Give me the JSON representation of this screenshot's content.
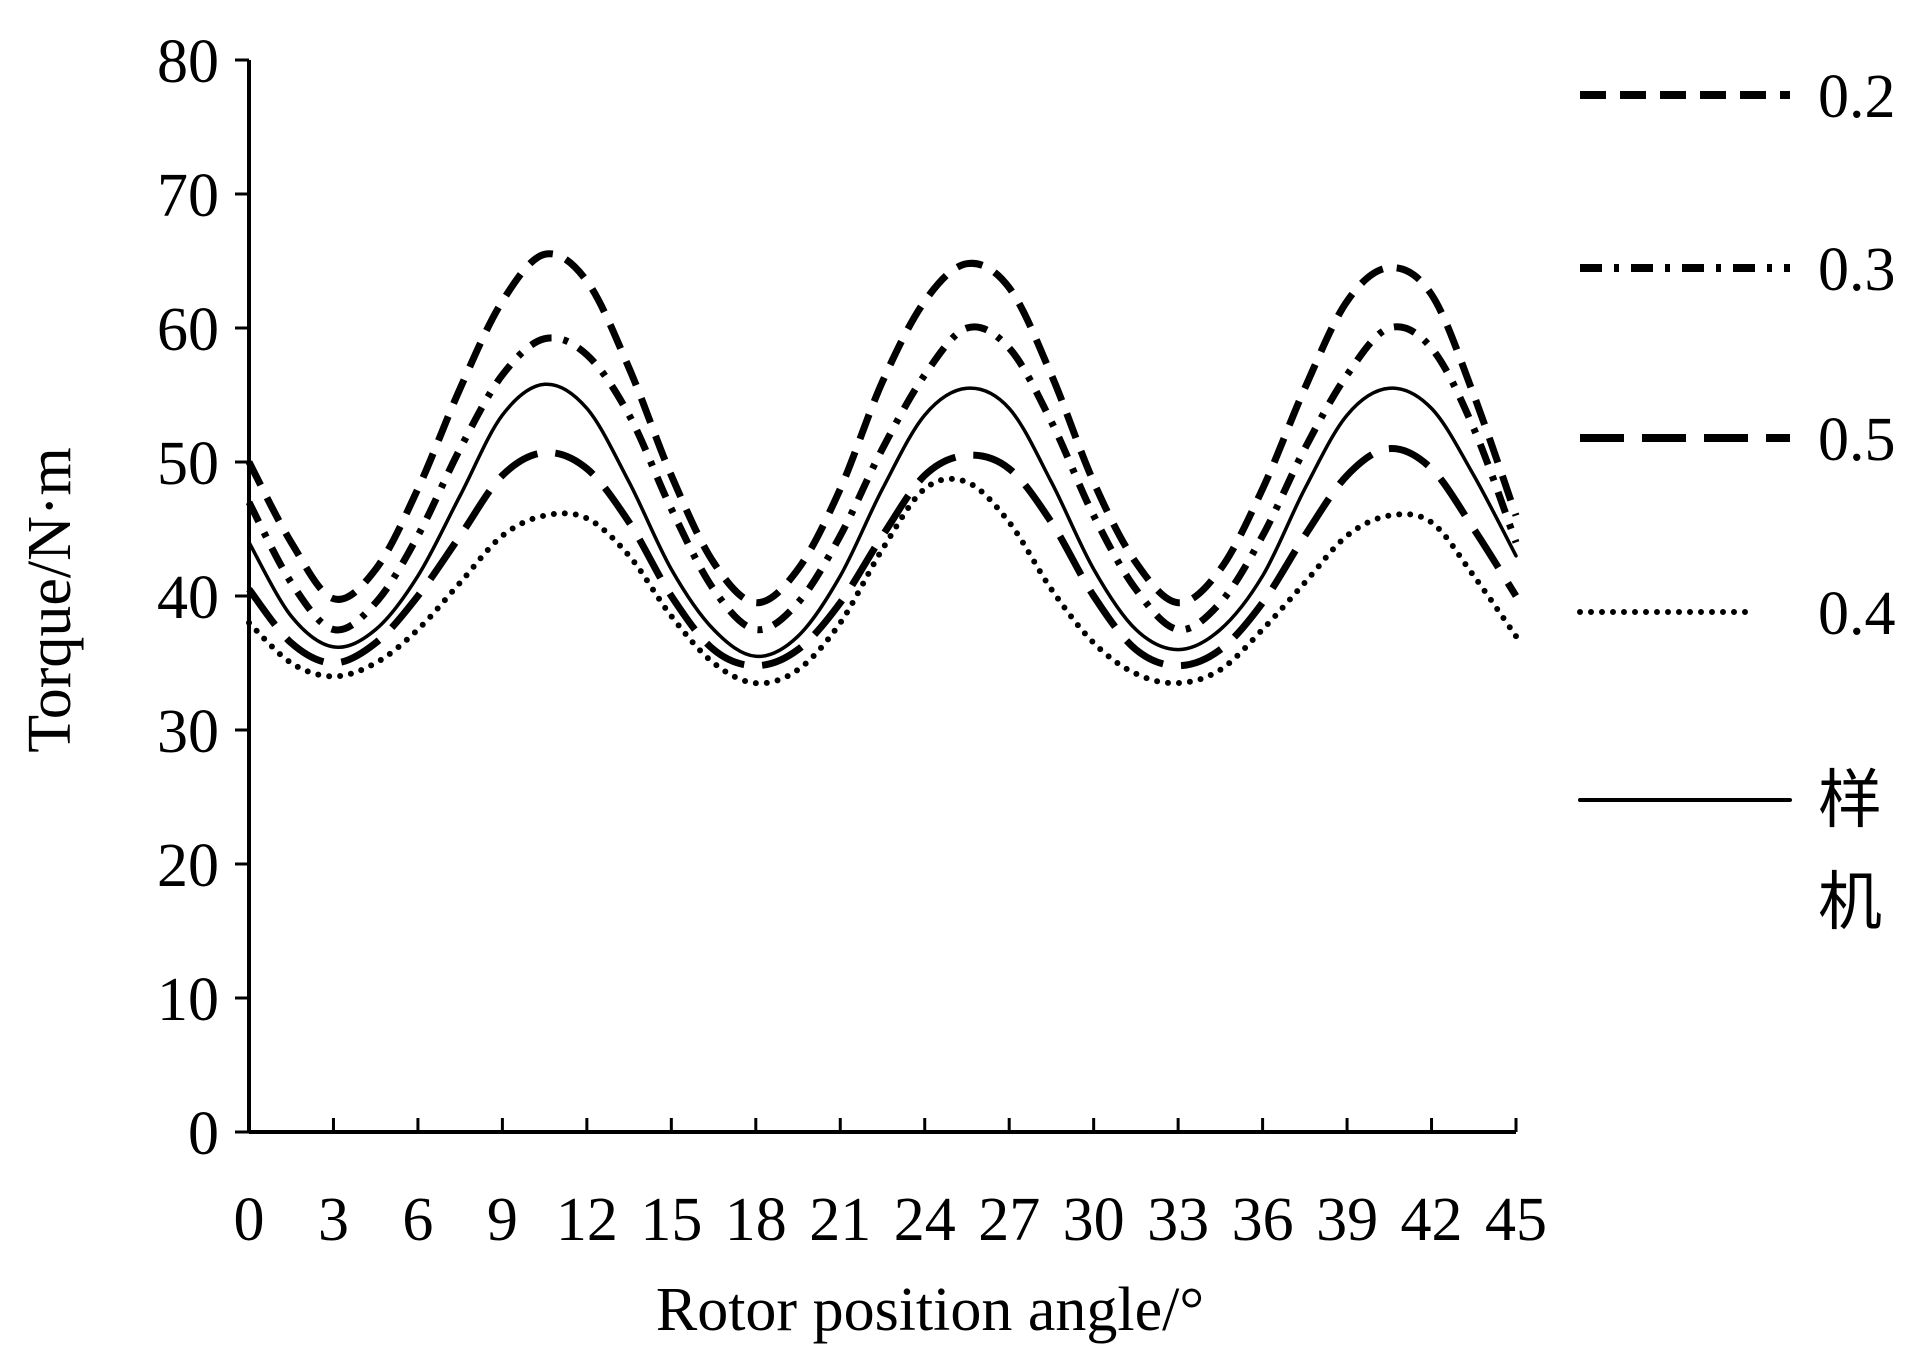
{
  "chart_data": {
    "type": "line",
    "xlabel": "Rotor position angle/°",
    "ylabel": "Torque/N·m",
    "xlim": [
      0,
      45
    ],
    "ylim": [
      0,
      80
    ],
    "xticks": [
      0,
      3,
      6,
      9,
      12,
      15,
      18,
      21,
      24,
      27,
      30,
      33,
      36,
      39,
      42,
      45
    ],
    "yticks": [
      0,
      10,
      20,
      30,
      40,
      50,
      60,
      70,
      80
    ],
    "grid": false,
    "legend_position": "right",
    "series": [
      {
        "name": "0.2",
        "style": "dash",
        "x": [
          0,
          1.5,
          3,
          4.5,
          6,
          7.5,
          9,
          10.5,
          12,
          13.5,
          15,
          16.5,
          18,
          19.5,
          21,
          22.5,
          24,
          25.5,
          27,
          28.5,
          30,
          31.5,
          33,
          34.5,
          36,
          37.5,
          39,
          40.5,
          42,
          43.5,
          45
        ],
        "values": [
          50,
          44,
          39.8,
          42,
          48,
          55.5,
          62,
          65.5,
          63.5,
          57,
          49,
          42.5,
          39.5,
          42,
          48,
          56,
          62,
          64.8,
          63,
          56.5,
          48.5,
          42.5,
          39.5,
          42,
          48,
          55.5,
          62,
          64.5,
          62.5,
          55,
          46
        ]
      },
      {
        "name": "0.3",
        "style": "dashdot",
        "x": [
          0,
          1.5,
          3,
          4.5,
          6,
          7.5,
          9,
          10.5,
          12,
          13.5,
          15,
          16.5,
          18,
          19.5,
          21,
          22.5,
          24,
          25.5,
          27,
          28.5,
          30,
          31.5,
          33,
          34.5,
          36,
          37.5,
          39,
          40.5,
          42,
          43.5,
          45
        ],
        "values": [
          47,
          41,
          37.5,
          39.5,
          44.5,
          51,
          56.5,
          59.2,
          58,
          53.5,
          46.5,
          40.5,
          37.5,
          39.5,
          44.5,
          51,
          56.5,
          60,
          58.5,
          53,
          46,
          40.5,
          37.5,
          39.5,
          44.5,
          51,
          56.5,
          60,
          58.5,
          52.5,
          44
        ]
      },
      {
        "name": "0.5",
        "style": "longdash",
        "x": [
          0,
          1.5,
          3,
          4.5,
          6,
          7.5,
          9,
          10.5,
          12,
          13.5,
          15,
          16.5,
          18,
          19.5,
          21,
          22.5,
          24,
          25.5,
          27,
          28.5,
          30,
          31.5,
          33,
          34.5,
          36,
          37.5,
          39,
          40.5,
          42,
          43.5,
          45
        ],
        "values": [
          40.5,
          36.5,
          35,
          36.5,
          40,
          44.5,
          49,
          50.7,
          49.5,
          45.5,
          40,
          36,
          34.8,
          36,
          39.5,
          44.5,
          49,
          50.5,
          49.5,
          45.5,
          40,
          36,
          34.8,
          36,
          39.5,
          44.5,
          49,
          51,
          49.5,
          45,
          40
        ]
      },
      {
        "name": "0.4",
        "style": "dot",
        "x": [
          0,
          1.5,
          3,
          4.5,
          6,
          7.5,
          9,
          10.5,
          12,
          13.5,
          15,
          16.5,
          18,
          19.5,
          21,
          22.5,
          24,
          25.5,
          27,
          28.5,
          30,
          31.5,
          33,
          34.5,
          36,
          37.5,
          39,
          40.5,
          42,
          43.5,
          45
        ],
        "values": [
          38,
          35,
          34,
          35,
          37.5,
          41,
          44.5,
          46,
          45.8,
          43,
          38.5,
          35,
          33.5,
          34.5,
          38,
          43.5,
          48,
          48.5,
          45.5,
          40.5,
          36.5,
          34.2,
          33.5,
          34.5,
          37.5,
          41,
          44.5,
          46,
          45.5,
          41.5,
          37
        ]
      },
      {
        "name": "样机",
        "style": "solid",
        "x": [
          0,
          1.5,
          3,
          4.5,
          6,
          7.5,
          9,
          10.5,
          12,
          13.5,
          15,
          16.5,
          18,
          19.5,
          21,
          22.5,
          24,
          25.5,
          27,
          28.5,
          30,
          31.5,
          33,
          34.5,
          36,
          37.5,
          39,
          40.5,
          42,
          43.5,
          45
        ],
        "values": [
          44,
          38.5,
          36.2,
          37.5,
          41.5,
          47.5,
          53.5,
          55.8,
          54,
          48.5,
          42,
          37.5,
          35.5,
          37,
          41.5,
          48,
          53.5,
          55.5,
          54,
          48.5,
          42,
          37.5,
          36,
          37.5,
          41.5,
          48,
          53.5,
          55.5,
          54,
          49,
          43
        ]
      }
    ]
  }
}
